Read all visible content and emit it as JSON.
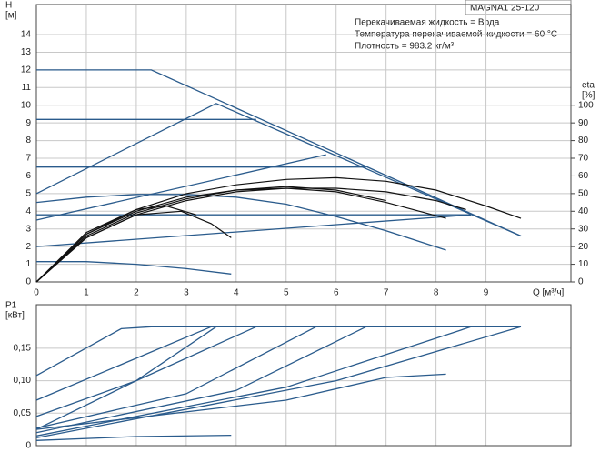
{
  "chart_data": [
    {
      "type": "line",
      "ylabel": "H",
      "ylabel_unit": "[м]",
      "y2label": "eta",
      "y2label_unit": "[%]",
      "xlabel": "Q [м³/ч]",
      "model": "MAGNA1 25-120",
      "annotations": [
        "Перекачиваемая жидкость = Вода",
        "Температура перекачиваемой жидкости = 60 °C",
        "Плотность = 983.2 кг/м³"
      ],
      "xlim": [
        0,
        10.7
      ],
      "ylim": [
        0,
        15.7
      ],
      "y2lim": [
        0,
        157
      ],
      "xticks": [
        0,
        1,
        2,
        3,
        4,
        5,
        6,
        7,
        8,
        9
      ],
      "yticks": [
        0,
        1,
        2,
        3,
        4,
        5,
        6,
        7,
        8,
        9,
        10,
        11,
        12,
        13,
        14
      ],
      "y2ticks": [
        0,
        10,
        20,
        30,
        40,
        50,
        60,
        70,
        80,
        90,
        100
      ],
      "grid": true,
      "series": [
        {
          "color": "#2a5b8c",
          "x": [
            0,
            2.3,
            9.7
          ],
          "values": [
            12,
            12,
            2.6
          ]
        },
        {
          "color": "#2a5b8c",
          "x": [
            0,
            4.4
          ],
          "values": [
            9.2,
            9.2
          ]
        },
        {
          "color": "#2a5b8c",
          "x": [
            0,
            6.6
          ],
          "values": [
            6.5,
            6.5
          ]
        },
        {
          "color": "#2a5b8c",
          "x": [
            0,
            8.7
          ],
          "values": [
            3.8,
            3.8
          ]
        },
        {
          "color": "#2a5b8c",
          "x": [
            0,
            3.6,
            9.7
          ],
          "values": [
            5,
            10.1,
            2.6
          ]
        },
        {
          "color": "#2a5b8c",
          "x": [
            0,
            5.8
          ],
          "values": [
            3.5,
            7.2
          ]
        },
        {
          "color": "#2a5b8c",
          "x": [
            0,
            8.7
          ],
          "values": [
            2,
            3.8
          ]
        },
        {
          "color": "#2a5b8c",
          "x": [
            0,
            1,
            2,
            3,
            4,
            5,
            6,
            7,
            8.2
          ],
          "values": [
            4.5,
            4.8,
            4.95,
            4.95,
            4.8,
            4.4,
            3.7,
            2.9,
            1.8
          ]
        },
        {
          "color": "#2a5b8c",
          "x": [
            0,
            1,
            2,
            3,
            3.9
          ],
          "values": [
            1.15,
            1.15,
            1.0,
            0.75,
            0.45
          ]
        },
        {
          "color": "#111111",
          "axis": "y2",
          "x": [
            0,
            1,
            2,
            3,
            4,
            5,
            6,
            7,
            8,
            9,
            9.7
          ],
          "values": [
            0,
            28,
            41,
            50,
            55,
            58,
            59,
            57,
            52,
            43,
            36
          ]
        },
        {
          "color": "#111111",
          "axis": "y2",
          "x": [
            0,
            1,
            2,
            3,
            4,
            5,
            6,
            7,
            8,
            8.6
          ],
          "values": [
            0,
            27,
            40,
            48,
            52,
            53,
            53,
            51,
            46,
            41
          ]
        },
        {
          "color": "#111111",
          "axis": "y2",
          "x": [
            0,
            1,
            2,
            3,
            4,
            5,
            6,
            7,
            8.2
          ],
          "values": [
            0,
            25,
            38,
            46,
            51,
            53,
            51,
            45,
            36
          ]
        },
        {
          "color": "#111111",
          "axis": "y2",
          "x": [
            0,
            1,
            2,
            3,
            4,
            5,
            6,
            7
          ],
          "values": [
            0,
            26,
            39,
            47,
            52,
            54,
            52,
            46
          ]
        },
        {
          "color": "#111111",
          "axis": "y2",
          "x": [
            0,
            1,
            2,
            2.9,
            3.5,
            3.9
          ],
          "values": [
            0,
            25,
            38,
            40,
            33,
            25
          ]
        },
        {
          "color": "#111111",
          "axis": "y2",
          "x": [
            0,
            1,
            2,
            2.6,
            3.2
          ],
          "values": [
            0,
            27,
            41,
            43,
            38
          ]
        }
      ]
    },
    {
      "type": "line",
      "ylabel": "P1",
      "ylabel_unit": "[кВт]",
      "xlim": [
        0,
        10.7
      ],
      "ylim": [
        0,
        0.217
      ],
      "yticks": [
        0,
        {
          "value": 0.05,
          "label": "0,05"
        },
        {
          "value": 0.1,
          "label": "0,10"
        },
        {
          "value": 0.15,
          "label": "0,15"
        }
      ],
      "grid": true,
      "series": [
        {
          "color": "#2a5b8c",
          "x": [
            0,
            1.7,
            2.3,
            9.7
          ],
          "values": [
            0.108,
            0.18,
            0.183,
            0.183
          ]
        },
        {
          "color": "#2a5b8c",
          "x": [
            0,
            3.5
          ],
          "values": [
            0.07,
            0.183
          ]
        },
        {
          "color": "#2a5b8c",
          "x": [
            0,
            2,
            4.4
          ],
          "values": [
            0.045,
            0.1,
            0.183
          ]
        },
        {
          "color": "#2a5b8c",
          "x": [
            0,
            2,
            3.6
          ],
          "values": [
            0.025,
            0.1,
            0.183
          ]
        },
        {
          "color": "#2a5b8c",
          "x": [
            0,
            3,
            5.6
          ],
          "values": [
            0.027,
            0.08,
            0.183
          ]
        },
        {
          "color": "#2a5b8c",
          "x": [
            0,
            4,
            6.6
          ],
          "values": [
            0.02,
            0.085,
            0.183
          ]
        },
        {
          "color": "#2a5b8c",
          "x": [
            0,
            5,
            8.7
          ],
          "values": [
            0.015,
            0.09,
            0.183
          ]
        },
        {
          "color": "#2a5b8c",
          "x": [
            0,
            6,
            9.7
          ],
          "values": [
            0.012,
            0.1,
            0.183
          ]
        },
        {
          "color": "#2a5b8c",
          "x": [
            0,
            5,
            7,
            8.2
          ],
          "values": [
            0.025,
            0.07,
            0.105,
            0.11
          ]
        },
        {
          "color": "#2a5b8c",
          "x": [
            0,
            2,
            3.9
          ],
          "values": [
            0.008,
            0.014,
            0.016
          ]
        }
      ]
    }
  ]
}
